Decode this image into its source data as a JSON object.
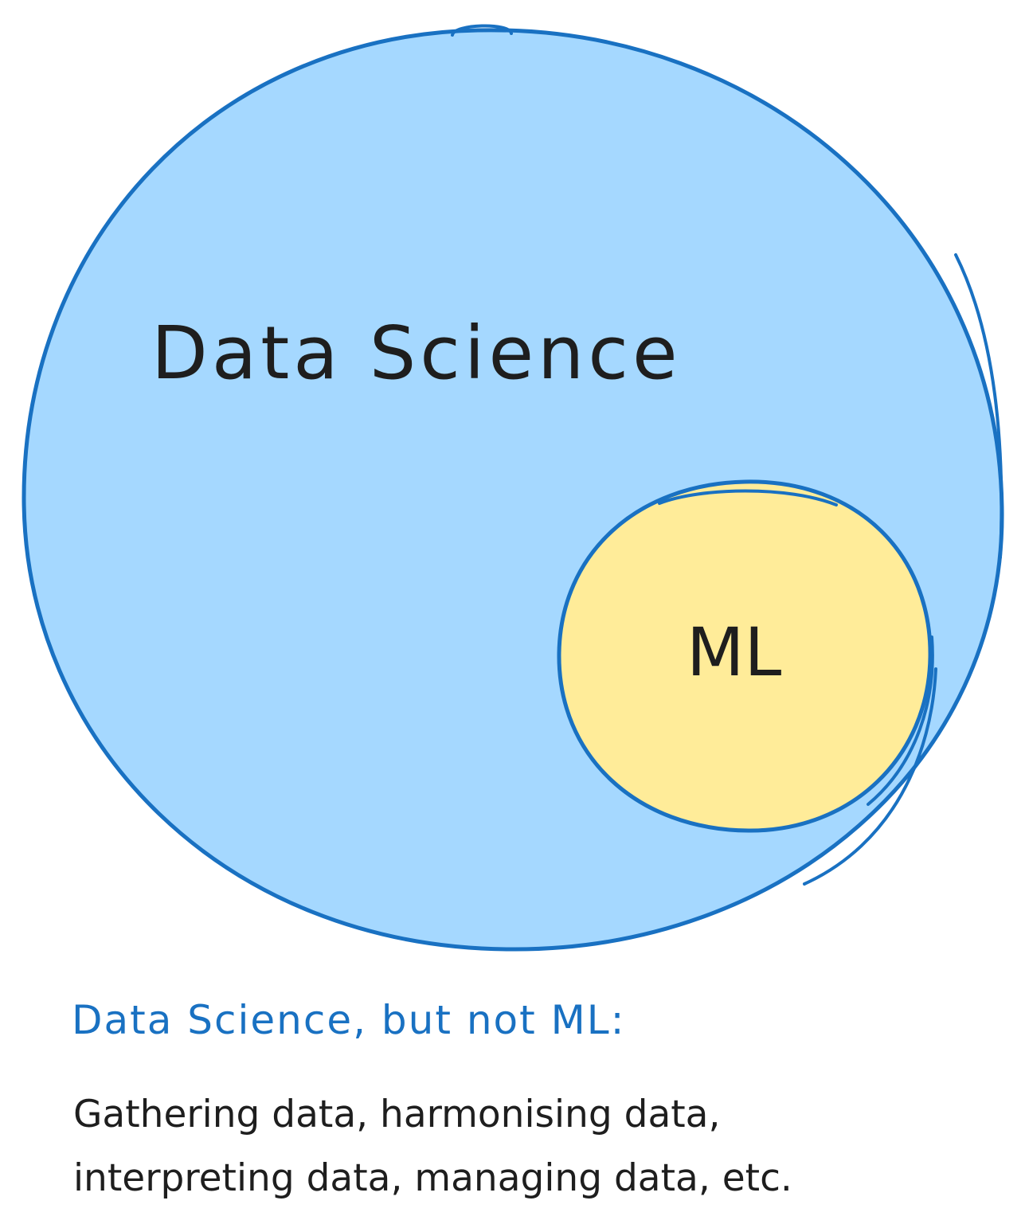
{
  "diagram": {
    "outer_circle": {
      "label": "Data Science",
      "fill": "#a5d8ff",
      "stroke": "#1971c2"
    },
    "inner_circle": {
      "label": "ML",
      "fill": "#ffec99",
      "stroke": "#1971c2"
    }
  },
  "caption": {
    "heading": "Data Science, but not ML:",
    "heading_color": "#1971c2",
    "body_lines": [
      "Gathering data, harmonising data,",
      "interpreting data, managing data, etc."
    ]
  }
}
